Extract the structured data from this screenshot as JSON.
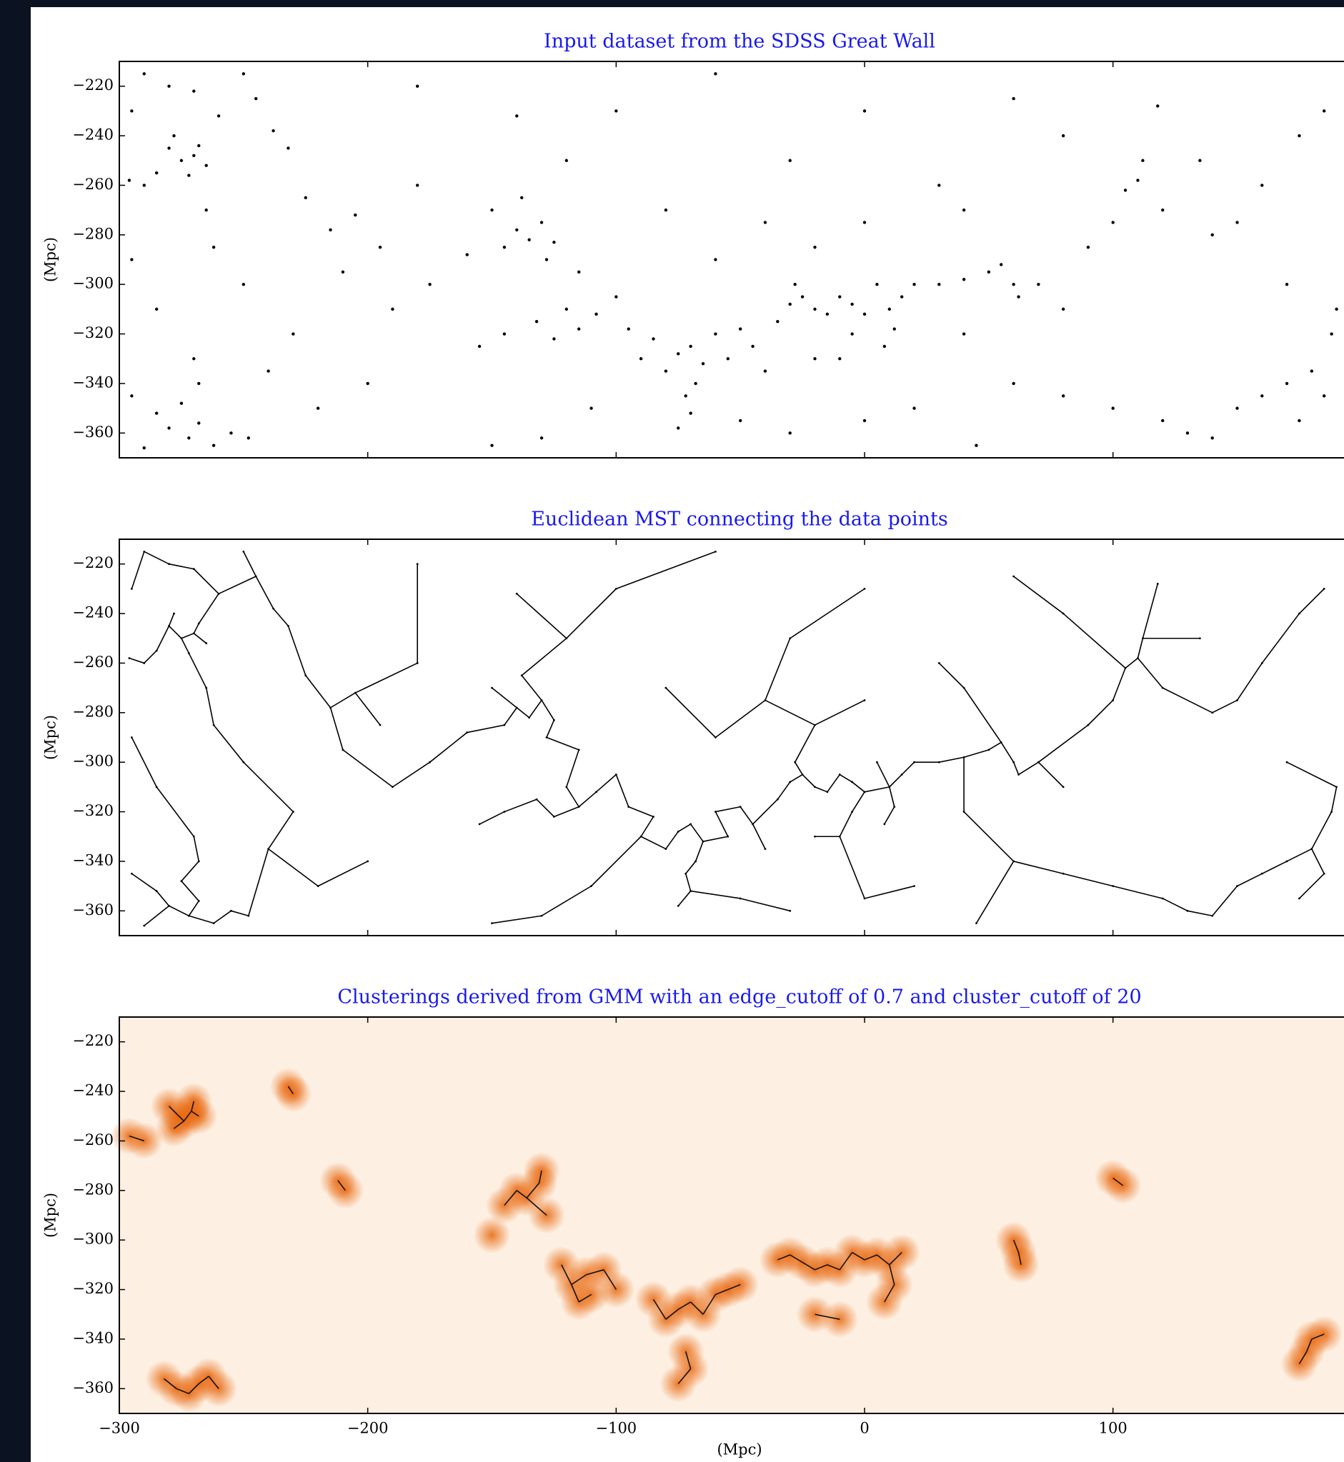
{
  "chart_data": [
    {
      "type": "scatter",
      "title": "Input dataset from the SDSS Great Wall",
      "ylabel": "(Mpc)",
      "xlim": [
        -300,
        193
      ],
      "ylim": [
        -370,
        -210
      ],
      "xticks": [
        -300,
        -200,
        -100,
        0,
        100
      ],
      "yticks": [
        {
          "value": -220,
          "label": "−220"
        },
        {
          "value": -240,
          "label": "−240"
        },
        {
          "value": -260,
          "label": "−260"
        },
        {
          "value": -280,
          "label": "−280"
        },
        {
          "value": -300,
          "label": "−300"
        },
        {
          "value": -320,
          "label": "−320"
        },
        {
          "value": -340,
          "label": "−340"
        },
        {
          "value": -360,
          "label": "−360"
        }
      ],
      "color": "#000000",
      "x": [
        -280,
        -275,
        -270,
        -285,
        -272,
        -268,
        -290,
        -296,
        -278,
        -265,
        -290,
        -280,
        -270,
        -250,
        -245,
        -238,
        -232,
        -260,
        -295,
        -280,
        -272,
        -268,
        -285,
        -262,
        -275,
        -290,
        -255,
        -295,
        -248,
        -262,
        -265,
        -295,
        -285,
        -270,
        -268,
        -240,
        -250,
        -230,
        -210,
        -215,
        -205,
        -225,
        -195,
        -190,
        -200,
        -220,
        -180,
        -175,
        -140,
        -135,
        -130,
        -145,
        -128,
        -150,
        -138,
        -125,
        -160,
        -115,
        -120,
        -115,
        -125,
        -108,
        -100,
        -132,
        -145,
        -155,
        -95,
        -85,
        -90,
        -80,
        -75,
        -70,
        -65,
        -60,
        -55,
        -50,
        -45,
        -72,
        -70,
        -75,
        -68,
        -40,
        -35,
        -30,
        -25,
        -20,
        -28,
        -15,
        -10,
        -5,
        0,
        5,
        10,
        12,
        15,
        8,
        20,
        -20,
        -10,
        -5,
        30,
        40,
        50,
        60,
        62,
        55,
        70,
        80,
        90,
        100,
        110,
        112,
        105,
        118,
        120,
        135,
        140,
        150,
        160,
        170,
        175,
        185,
        190,
        188,
        180,
        170,
        160,
        150,
        175,
        185,
        130,
        140,
        120,
        100,
        80,
        60,
        40,
        45,
        -30,
        -50,
        -110,
        -130,
        -150,
        0,
        20,
        -180,
        -100,
        -60,
        -30,
        0,
        30,
        60,
        80,
        -140,
        -120,
        -80,
        -40,
        0,
        40,
        -60,
        -20
      ],
      "y": [
        -245,
        -250,
        -248,
        -255,
        -256,
        -244,
        -260,
        -258,
        -240,
        -252,
        -215,
        -220,
        -222,
        -215,
        -225,
        -238,
        -245,
        -232,
        -230,
        -358,
        -362,
        -356,
        -352,
        -365,
        -348,
        -366,
        -360,
        -345,
        -362,
        -285,
        -270,
        -290,
        -310,
        -330,
        -340,
        -335,
        -300,
        -320,
        -295,
        -278,
        -272,
        -265,
        -285,
        -310,
        -340,
        -350,
        -260,
        -300,
        -278,
        -282,
        -275,
        -285,
        -290,
        -270,
        -265,
        -283,
        -288,
        -295,
        -310,
        -318,
        -322,
        -312,
        -305,
        -315,
        -320,
        -325,
        -318,
        -322,
        -330,
        -335,
        -328,
        -325,
        -332,
        -320,
        -330,
        -318,
        -325,
        -345,
        -352,
        -358,
        -340,
        -335,
        -315,
        -308,
        -305,
        -310,
        -300,
        -312,
        -305,
        -308,
        -312,
        -300,
        -310,
        -318,
        -305,
        -325,
        -300,
        -330,
        -330,
        -320,
        -300,
        -298,
        -295,
        -300,
        -305,
        -292,
        -300,
        -310,
        -285,
        -275,
        -258,
        -250,
        -262,
        -228,
        -270,
        -250,
        -280,
        -275,
        -260,
        -300,
        -240,
        -230,
        -310,
        -320,
        -335,
        -340,
        -345,
        -350,
        -355,
        -345,
        -360,
        -362,
        -355,
        -350,
        -345,
        -340,
        -320,
        -365,
        -360,
        -355,
        -350,
        -362,
        -365,
        -355,
        -350,
        -220,
        -230,
        -215,
        -250,
        -230,
        -260,
        -225,
        -240,
        -232,
        -250,
        -270,
        -275,
        -275,
        -270,
        -290,
        -285
      ]
    },
    {
      "type": "tree",
      "title": "Euclidean MST connecting the data points",
      "ylabel": "(Mpc)",
      "xlim": [
        -300,
        193
      ],
      "ylim": [
        -370,
        -210
      ],
      "xticks": [
        -300,
        -200,
        -100,
        0,
        100
      ],
      "yticks": [
        {
          "value": -220,
          "label": "−220"
        },
        {
          "value": -240,
          "label": "−240"
        },
        {
          "value": -260,
          "label": "−260"
        },
        {
          "value": -280,
          "label": "−280"
        },
        {
          "value": -300,
          "label": "−300"
        },
        {
          "value": -320,
          "label": "−320"
        },
        {
          "value": -340,
          "label": "−340"
        },
        {
          "value": -360,
          "label": "−360"
        }
      ],
      "color": "#000000",
      "x": [
        -280,
        -275,
        -270,
        -285,
        -272,
        -268,
        -290,
        -296,
        -278,
        -265,
        -290,
        -280,
        -270,
        -250,
        -245,
        -238,
        -232,
        -260,
        -295,
        -280,
        -272,
        -268,
        -285,
        -262,
        -275,
        -290,
        -255,
        -295,
        -248,
        -262,
        -265,
        -295,
        -285,
        -270,
        -268,
        -240,
        -250,
        -230,
        -210,
        -215,
        -205,
        -225,
        -195,
        -190,
        -200,
        -220,
        -180,
        -175,
        -140,
        -135,
        -130,
        -145,
        -128,
        -150,
        -138,
        -125,
        -160,
        -115,
        -120,
        -115,
        -125,
        -108,
        -100,
        -132,
        -145,
        -155,
        -95,
        -85,
        -90,
        -80,
        -75,
        -70,
        -65,
        -60,
        -55,
        -50,
        -45,
        -72,
        -70,
        -75,
        -68,
        -40,
        -35,
        -30,
        -25,
        -20,
        -28,
        -15,
        -10,
        -5,
        0,
        5,
        10,
        12,
        15,
        8,
        20,
        -20,
        -10,
        -5,
        30,
        40,
        50,
        60,
        62,
        55,
        70,
        80,
        90,
        100,
        110,
        112,
        105,
        118,
        120,
        135,
        140,
        150,
        160,
        170,
        175,
        185,
        190,
        188,
        180,
        170,
        160,
        150,
        175,
        185,
        130,
        140,
        120,
        100,
        80,
        60,
        40,
        45,
        -30,
        -50,
        -110,
        -130,
        -150,
        0,
        20,
        -180,
        -100,
        -60,
        -30,
        0,
        30,
        60,
        80,
        -140,
        -120,
        -80,
        -40,
        0,
        40,
        -60,
        -20
      ],
      "y": [
        -245,
        -250,
        -248,
        -255,
        -256,
        -244,
        -260,
        -258,
        -240,
        -252,
        -215,
        -220,
        -222,
        -215,
        -225,
        -238,
        -245,
        -232,
        -230,
        -358,
        -362,
        -356,
        -352,
        -365,
        -348,
        -366,
        -360,
        -345,
        -362,
        -285,
        -270,
        -290,
        -310,
        -330,
        -340,
        -335,
        -300,
        -320,
        -295,
        -278,
        -272,
        -265,
        -285,
        -310,
        -340,
        -350,
        -260,
        -300,
        -278,
        -282,
        -275,
        -285,
        -290,
        -270,
        -265,
        -283,
        -288,
        -295,
        -310,
        -318,
        -322,
        -312,
        -305,
        -315,
        -320,
        -325,
        -318,
        -322,
        -330,
        -335,
        -328,
        -325,
        -332,
        -320,
        -330,
        -318,
        -325,
        -345,
        -352,
        -358,
        -340,
        -335,
        -315,
        -308,
        -305,
        -310,
        -300,
        -312,
        -305,
        -308,
        -312,
        -300,
        -310,
        -318,
        -305,
        -325,
        -300,
        -330,
        -330,
        -320,
        -300,
        -298,
        -295,
        -300,
        -305,
        -292,
        -300,
        -310,
        -285,
        -275,
        -258,
        -250,
        -262,
        -228,
        -270,
        -250,
        -280,
        -275,
        -260,
        -300,
        -240,
        -230,
        -310,
        -320,
        -335,
        -340,
        -345,
        -350,
        -355,
        -345,
        -360,
        -362,
        -355,
        -350,
        -345,
        -340,
        -320,
        -365,
        -360,
        -355,
        -350,
        -362,
        -365,
        -355,
        -350,
        -220,
        -230,
        -215,
        -250,
        -230,
        -260,
        -225,
        -240,
        -232,
        -250,
        -270,
        -275,
        -275,
        -270,
        -290,
        -285
      ]
    },
    {
      "type": "cluster",
      "title": "Clusterings derived from GMM with an edge_cutoff of 0.7 and cluster_cutoff of 20",
      "ylabel": "(Mpc)",
      "xlabel": "(Mpc)",
      "xlim": [
        -300,
        193
      ],
      "ylim": [
        -370,
        -210
      ],
      "xticks": [
        {
          "value": -300,
          "label": "−300"
        },
        {
          "value": -200,
          "label": "−200"
        },
        {
          "value": -100,
          "label": "−100"
        },
        0,
        100
      ],
      "yticks": [
        {
          "value": -220,
          "label": "−220"
        },
        {
          "value": -240,
          "label": "−240"
        },
        {
          "value": -260,
          "label": "−260"
        },
        {
          "value": -280,
          "label": "−280"
        },
        {
          "value": -300,
          "label": "−300"
        },
        {
          "value": -320,
          "label": "−320"
        },
        {
          "value": -340,
          "label": "−340"
        },
        {
          "value": -360,
          "label": "−360"
        }
      ],
      "color": "#e8650a",
      "x": [
        -280,
        -276,
        -271,
        -278,
        -274,
        -270,
        -268,
        -290,
        -296,
        -282,
        -277,
        -272,
        -268,
        -264,
        -260,
        -232,
        -230,
        -212,
        -209,
        -140,
        -136,
        -131,
        -145,
        -128,
        -130,
        -150,
        -122,
        -118,
        -112,
        -110,
        -115,
        -105,
        -100,
        -85,
        -80,
        -75,
        -70,
        -65,
        -60,
        -55,
        -50,
        -72,
        -70,
        -75,
        -35,
        -30,
        -25,
        -20,
        -15,
        -10,
        -5,
        0,
        5,
        10,
        12,
        15,
        8,
        -20,
        -10,
        60,
        62,
        63,
        100,
        104,
        180,
        178,
        175,
        185
      ],
      "y": [
        -246,
        -250,
        -248,
        -255,
        -252,
        -244,
        -250,
        -260,
        -258,
        -356,
        -360,
        -362,
        -358,
        -355,
        -360,
        -238,
        -241,
        -276,
        -280,
        -280,
        -283,
        -277,
        -286,
        -290,
        -272,
        -298,
        -310,
        -318,
        -314,
        -322,
        -325,
        -312,
        -320,
        -324,
        -332,
        -328,
        -325,
        -330,
        -322,
        -320,
        -318,
        -345,
        -352,
        -358,
        -308,
        -306,
        -309,
        -312,
        -310,
        -312,
        -305,
        -308,
        -306,
        -310,
        -318,
        -305,
        -325,
        -330,
        -332,
        -300,
        -305,
        -310,
        -275,
        -278,
        -340,
        -345,
        -350,
        -338
      ]
    }
  ]
}
